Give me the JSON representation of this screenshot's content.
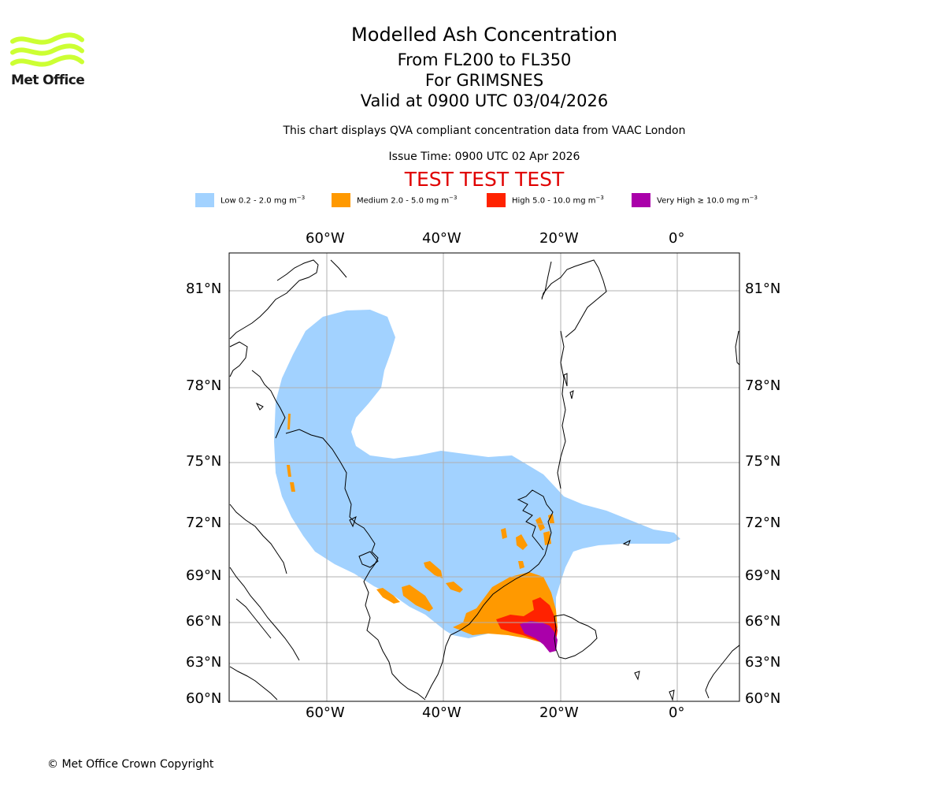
{
  "header": {
    "title": "Modelled Ash Concentration",
    "subtitle_levels": "From FL200 to FL350",
    "subtitle_volcano": "For GRIMSNES",
    "subtitle_valid": "Valid at 0900 UTC 03/04/2026",
    "description": "This chart displays QVA compliant concentration data from VAAC London",
    "issue_time": "Issue Time: 0900 UTC 02 Apr 2026",
    "test_banner": "TEST TEST TEST"
  },
  "logo": {
    "text": "Met Office",
    "color": "#ccff33"
  },
  "legend": [
    {
      "name": "Low",
      "range": "0.2 - 2.0 mg m",
      "unit_exp": "−3",
      "color": "#a2d2ff"
    },
    {
      "name": "Medium",
      "range": "2.0 - 5.0 mg m",
      "unit_exp": "−3",
      "color": "#ff9900"
    },
    {
      "name": "High",
      "range": "5.0 - 10.0 mg m",
      "unit_exp": "−3",
      "color": "#ff2200"
    },
    {
      "name": "Very High",
      "range": "≥  10.0 mg m",
      "unit_exp": "−3",
      "color": "#aa00aa"
    }
  ],
  "map": {
    "lon_ticks": [
      "60°W",
      "40°W",
      "20°W",
      "0°"
    ],
    "lat_ticks": [
      "81°N",
      "78°N",
      "75°N",
      "72°N",
      "69°N",
      "66°N",
      "63°N",
      "60°N"
    ],
    "grid": true,
    "coastline_color": "#000000",
    "gridline_color": "#b0b0b0"
  },
  "footer": {
    "copyright": "© Met Office Crown Copyright"
  }
}
